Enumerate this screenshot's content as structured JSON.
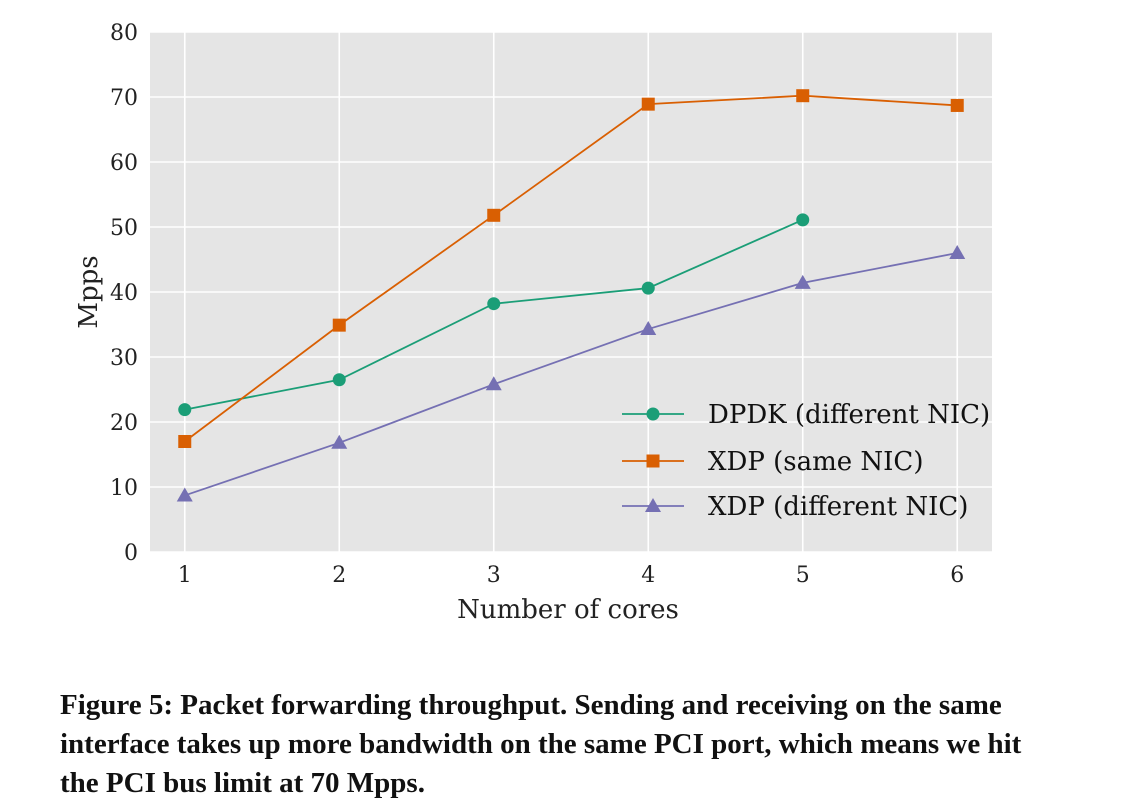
{
  "chart_data": {
    "type": "line",
    "xlabel": "Number of cores",
    "ylabel": "Mpps",
    "x": [
      1,
      2,
      3,
      4,
      5,
      6
    ],
    "xticks": [
      "1",
      "2",
      "3",
      "4",
      "5",
      "6"
    ],
    "ylim": [
      0,
      80
    ],
    "yticks": [
      "0",
      "10",
      "20",
      "30",
      "40",
      "50",
      "60",
      "70",
      "80"
    ],
    "grid": true,
    "legend_position": "lower-right",
    "series": [
      {
        "name": "DPDK (different NIC)",
        "marker": "circle",
        "color": "#1b9e77",
        "values": [
          21.9,
          26.5,
          38.2,
          40.6,
          51.1,
          null
        ]
      },
      {
        "name": "XDP (same NIC)",
        "marker": "square",
        "color": "#d95f02",
        "values": [
          17.0,
          34.9,
          51.8,
          68.9,
          70.2,
          68.7
        ]
      },
      {
        "name": "XDP (different NIC)",
        "marker": "triangle",
        "color": "#7570b3",
        "values": [
          8.7,
          16.8,
          25.8,
          34.3,
          41.4,
          46.0
        ]
      }
    ]
  },
  "caption": "Figure 5:  Packet forwarding throughput. Sending and receiving on the same interface takes up more bandwidth on the same PCI port, which means we hit the PCI bus limit at 70 Mpps."
}
